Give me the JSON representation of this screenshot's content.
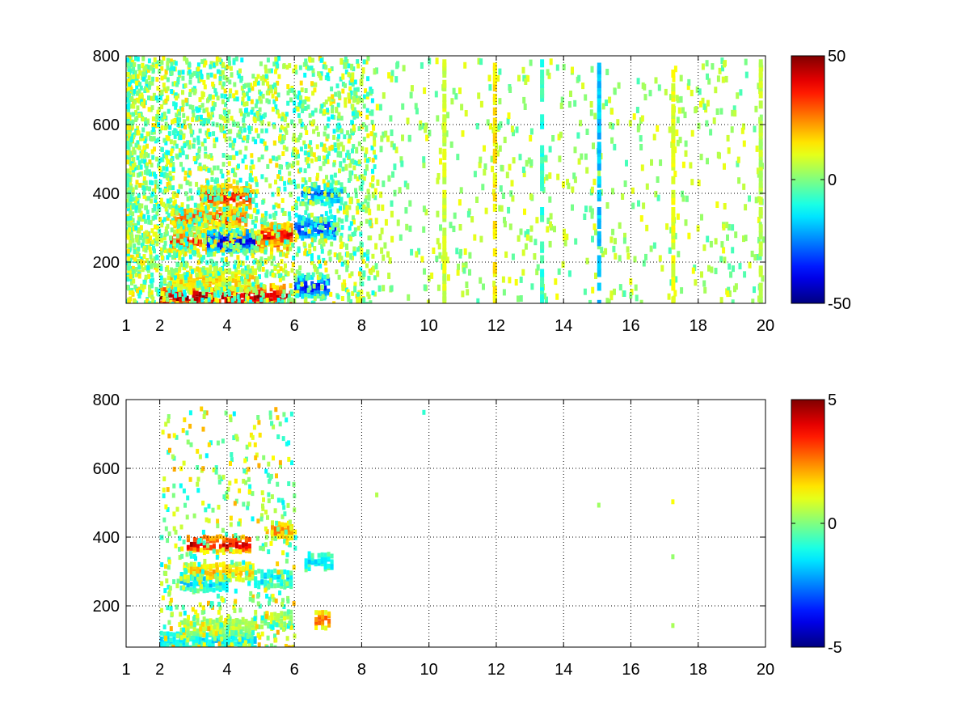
{
  "colormap": "jet",
  "colors": {
    "background": "#ffffff",
    "axis": "#000000",
    "grid": "#000000"
  },
  "chart_data": [
    {
      "type": "heatmap",
      "title": "",
      "xlabel": "",
      "ylabel": "",
      "xlim": [
        1,
        20
      ],
      "ylim": [
        80,
        800
      ],
      "x_scale": "linear",
      "x_ticks": [
        1,
        2,
        4,
        6,
        8,
        10,
        12,
        14,
        16,
        18,
        20
      ],
      "x_tick_labels": [
        "1",
        "2",
        "4",
        "6",
        "8",
        "10",
        "12",
        "14",
        "16",
        "18",
        "20"
      ],
      "y_ticks": [
        200,
        400,
        600,
        800
      ],
      "y_tick_labels": [
        "200",
        "400",
        "600",
        "800"
      ],
      "grid": true,
      "grid_style": "dotted",
      "colorbar": {
        "clim": [
          -50,
          50
        ],
        "tick_labels": [
          "50",
          "0",
          "-50"
        ],
        "tick_values": [
          50,
          0,
          -50
        ],
        "placement": "right"
      },
      "features": [
        {
          "x": [
            2.0,
            5.9
          ],
          "y": 100,
          "value": 48
        },
        {
          "x": [
            2.3,
            4.8
          ],
          "y": 150,
          "value": 18
        },
        {
          "x": [
            2.3,
            5.8
          ],
          "y": 260,
          "value": 35
        },
        {
          "x": [
            3.4,
            4.8
          ],
          "y": 260,
          "value": -42
        },
        {
          "x": [
            2.4,
            4.6
          ],
          "y": 330,
          "value": 30
        },
        {
          "x": [
            3.2,
            4.7
          ],
          "y": 390,
          "value": 38
        },
        {
          "x": [
            5.0,
            5.9
          ],
          "y": 280,
          "value": 42
        },
        {
          "x": [
            6.0,
            7.2
          ],
          "y": 300,
          "value": -35
        },
        {
          "x": [
            6.0,
            7.0
          ],
          "y": 130,
          "value": -40
        },
        {
          "x": [
            6.2,
            7.4
          ],
          "y": 400,
          "value": -25
        }
      ],
      "vertical_streaks": [
        {
          "x": 10.4,
          "value": 8
        },
        {
          "x": 11.9,
          "value": 14
        },
        {
          "x": 13.3,
          "value": -8
        },
        {
          "x": 15.0,
          "value": -18
        },
        {
          "x": 17.2,
          "value": 10
        },
        {
          "x": 19.8,
          "value": 6
        }
      ]
    },
    {
      "type": "heatmap",
      "title": "",
      "xlabel": "",
      "ylabel": "",
      "xlim": [
        1,
        20
      ],
      "ylim": [
        80,
        800
      ],
      "x_scale": "linear",
      "x_ticks": [
        1,
        2,
        4,
        6,
        8,
        10,
        12,
        14,
        16,
        18,
        20
      ],
      "x_tick_labels": [
        "1",
        "2",
        "4",
        "6",
        "8",
        "10",
        "12",
        "14",
        "16",
        "18",
        "20"
      ],
      "y_ticks": [
        200,
        400,
        600,
        800
      ],
      "y_tick_labels": [
        "200",
        "400",
        "600",
        "800"
      ],
      "grid": true,
      "grid_style": "dotted",
      "colorbar": {
        "clim": [
          -5,
          5
        ],
        "tick_labels": [
          "5",
          "0",
          "-5"
        ],
        "tick_values": [
          5,
          0,
          -5
        ],
        "placement": "right"
      },
      "features": [
        {
          "x": [
            2.0,
            4.8
          ],
          "y": 100,
          "value": -1.5
        },
        {
          "x": [
            2.6,
            4.8
          ],
          "y": 140,
          "value": 0.8
        },
        {
          "x": [
            2.6,
            4.0
          ],
          "y": 270,
          "value": -1.8
        },
        {
          "x": [
            2.7,
            4.8
          ],
          "y": 300,
          "value": 2.0
        },
        {
          "x": [
            2.8,
            4.7
          ],
          "y": 380,
          "value": 4.5
        },
        {
          "x": [
            4.8,
            5.9
          ],
          "y": 280,
          "value": -1.5
        },
        {
          "x": [
            4.8,
            5.9
          ],
          "y": 160,
          "value": 0.8
        },
        {
          "x": [
            5.3,
            5.9
          ],
          "y": 420,
          "value": 2.5
        },
        {
          "x": [
            6.3,
            7.1
          ],
          "y": 330,
          "value": -1.6
        },
        {
          "x": [
            6.6,
            7.0
          ],
          "y": 160,
          "value": 2.8
        }
      ],
      "isolated_points": [
        {
          "x": 9.8,
          "y": 770,
          "value": -0.8
        },
        {
          "x": 8.4,
          "y": 530,
          "value": 0.5
        },
        {
          "x": 15.0,
          "y": 500,
          "value": 0.3
        },
        {
          "x": 17.2,
          "y": 510,
          "value": 1.2
        },
        {
          "x": 17.2,
          "y": 350,
          "value": 0.2
        },
        {
          "x": 17.2,
          "y": 150,
          "value": 0.4
        }
      ]
    }
  ]
}
